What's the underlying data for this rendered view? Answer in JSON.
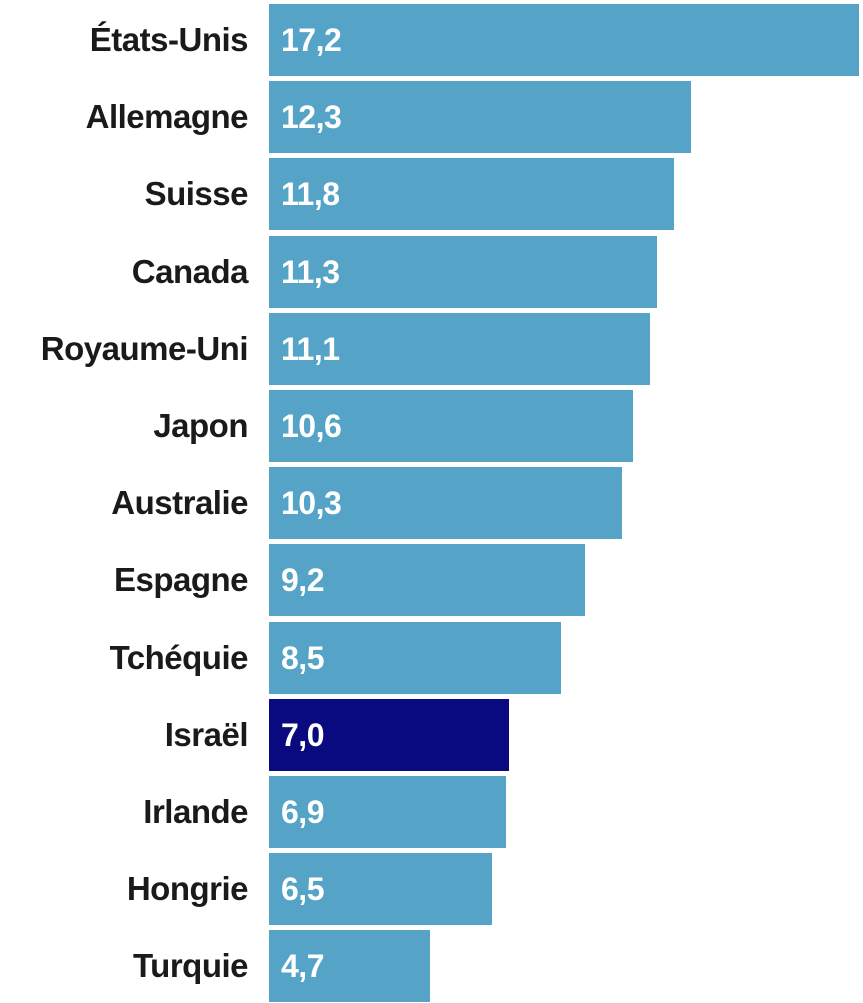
{
  "chart_data": {
    "type": "bar",
    "orientation": "horizontal",
    "categories": [
      "États-Unis",
      "Allemagne",
      "Suisse",
      "Canada",
      "Royaume-Uni",
      "Japon",
      "Australie",
      "Espagne",
      "Tchéquie",
      "Israël",
      "Irlande",
      "Hongrie",
      "Turquie"
    ],
    "values": [
      17.2,
      12.3,
      11.8,
      11.3,
      11.1,
      10.6,
      10.3,
      9.2,
      8.5,
      7.0,
      6.9,
      6.5,
      4.7
    ],
    "value_labels": [
      "17,2",
      "12,3",
      "11,8",
      "11,3",
      "11,1",
      "10,6",
      "10,3",
      "9,2",
      "8,5",
      "7,0",
      "6,9",
      "6,5",
      "4,7"
    ],
    "highlight": "Israël",
    "colors": {
      "default": "#55a4c8",
      "highlight": "#0a0a80"
    },
    "title": "",
    "xlabel": "",
    "ylabel": "",
    "grid": false,
    "legend": "none"
  }
}
